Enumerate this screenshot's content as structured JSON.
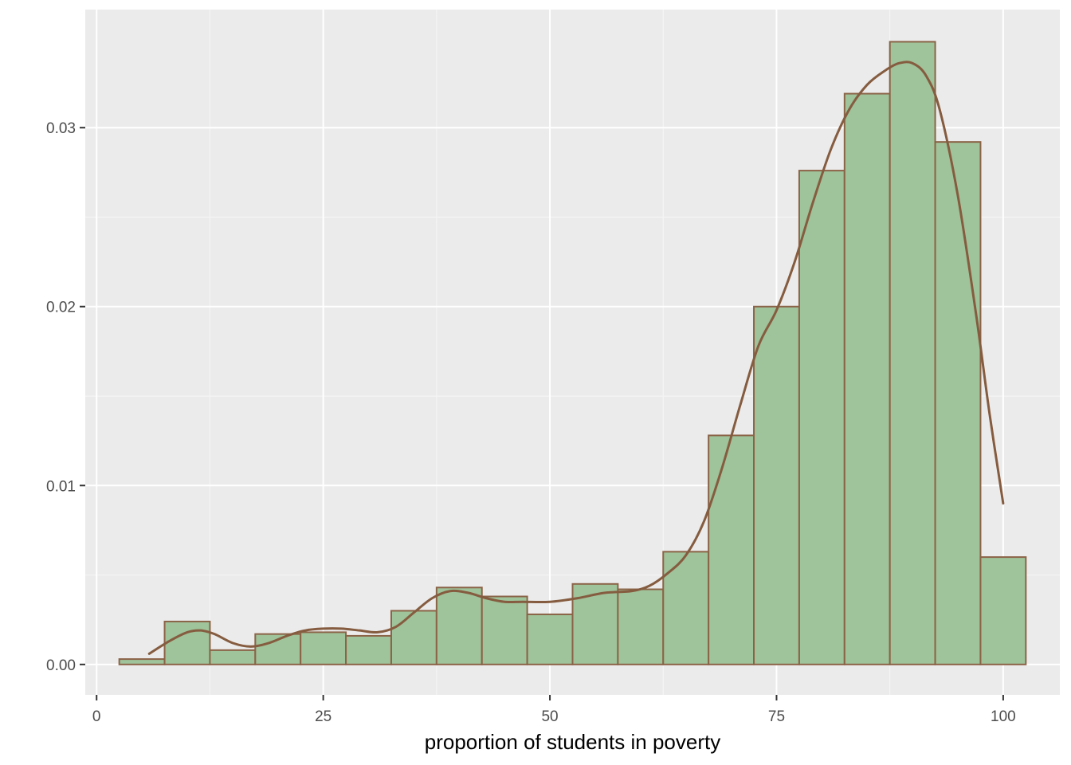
{
  "chart_data": {
    "type": "bar",
    "subtype": "histogram-with-density",
    "title": "",
    "xlabel": "proportion of students in poverty",
    "ylabel": "",
    "xlim": [
      -1.25,
      106.25
    ],
    "ylim": [
      -0.0017,
      0.0366
    ],
    "x_ticks": [
      0,
      25,
      50,
      75,
      100
    ],
    "x_tick_labels": [
      "0",
      "25",
      "50",
      "75",
      "100"
    ],
    "y_ticks": [
      0.0,
      0.01,
      0.02,
      0.03
    ],
    "y_tick_labels": [
      "0.00",
      "0.01",
      "0.02",
      "0.03"
    ],
    "grid": true,
    "bin_width": 5,
    "bins": [
      {
        "x0": 2.5,
        "x1": 7.5,
        "value": 0.0003
      },
      {
        "x0": 7.5,
        "x1": 12.5,
        "value": 0.0024
      },
      {
        "x0": 12.5,
        "x1": 17.5,
        "value": 0.0008
      },
      {
        "x0": 17.5,
        "x1": 22.5,
        "value": 0.0017
      },
      {
        "x0": 22.5,
        "x1": 27.5,
        "value": 0.0018
      },
      {
        "x0": 27.5,
        "x1": 32.5,
        "value": 0.0016
      },
      {
        "x0": 32.5,
        "x1": 37.5,
        "value": 0.003
      },
      {
        "x0": 37.5,
        "x1": 42.5,
        "value": 0.0043
      },
      {
        "x0": 42.5,
        "x1": 47.5,
        "value": 0.0038
      },
      {
        "x0": 47.5,
        "x1": 52.5,
        "value": 0.0028
      },
      {
        "x0": 52.5,
        "x1": 57.5,
        "value": 0.0045
      },
      {
        "x0": 57.5,
        "x1": 62.5,
        "value": 0.0042
      },
      {
        "x0": 62.5,
        "x1": 67.5,
        "value": 0.0063
      },
      {
        "x0": 67.5,
        "x1": 72.5,
        "value": 0.0128
      },
      {
        "x0": 72.5,
        "x1": 77.5,
        "value": 0.02
      },
      {
        "x0": 77.5,
        "x1": 82.5,
        "value": 0.0276
      },
      {
        "x0": 82.5,
        "x1": 87.5,
        "value": 0.0319
      },
      {
        "x0": 87.5,
        "x1": 92.5,
        "value": 0.0348
      },
      {
        "x0": 92.5,
        "x1": 97.5,
        "value": 0.0292
      },
      {
        "x0": 97.5,
        "x1": 102.5,
        "value": 0.006
      }
    ],
    "density_line": {
      "x": [
        5.8,
        8,
        10,
        11.5,
        13,
        15,
        17,
        19,
        21,
        23,
        25,
        27,
        29,
        31,
        33,
        35,
        37,
        39,
        41,
        43,
        45,
        47,
        50,
        53,
        56,
        59,
        61,
        63,
        65,
        67,
        69,
        71,
        73,
        75,
        77,
        79,
        81,
        83,
        85,
        87,
        88.5,
        90,
        91.5,
        93,
        95,
        97,
        98.5,
        100
      ],
      "y": [
        0.0006,
        0.0013,
        0.0018,
        0.0019,
        0.0017,
        0.0012,
        0.001,
        0.0012,
        0.0016,
        0.0019,
        0.002,
        0.002,
        0.0019,
        0.0018,
        0.0021,
        0.0029,
        0.0037,
        0.0041,
        0.004,
        0.0037,
        0.0035,
        0.0035,
        0.0035,
        0.0037,
        0.004,
        0.0041,
        0.0044,
        0.0051,
        0.0061,
        0.008,
        0.011,
        0.0145,
        0.0178,
        0.0198,
        0.0225,
        0.0258,
        0.0288,
        0.031,
        0.0324,
        0.0332,
        0.0336,
        0.0336,
        0.0329,
        0.031,
        0.0262,
        0.0196,
        0.014,
        0.009
      ]
    },
    "colors": {
      "panel_background": "#ebebeb",
      "grid_major": "#ffffff",
      "grid_minor": "#f5f5f5",
      "bar_fill": "#9fc39a",
      "bar_stroke": "#8b6347",
      "density_line": "#855c3f",
      "tick_mark": "#333333",
      "tick_label": "#4d4d4d",
      "axis_title": "#000000"
    }
  }
}
